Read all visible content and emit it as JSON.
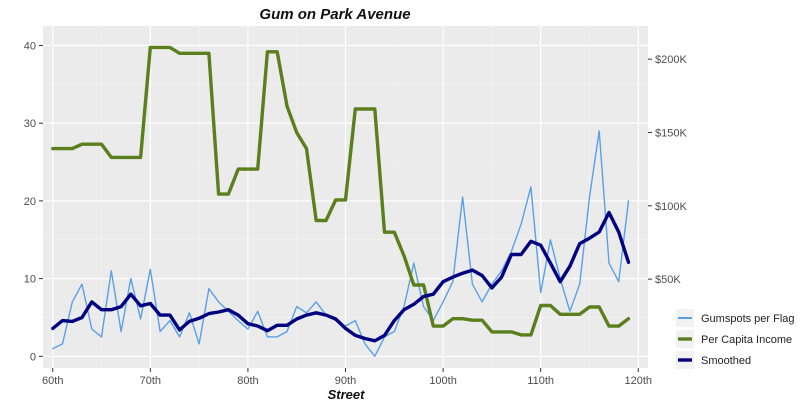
{
  "chart_data": {
    "type": "line",
    "title": "Gum on Park Avenue",
    "xlabel": "Street",
    "ylabel": "",
    "x_ticks": [
      "60th",
      "70th",
      "80th",
      "90th",
      "100th",
      "110th",
      "120th"
    ],
    "x_tick_values": [
      60,
      70,
      80,
      90,
      100,
      110,
      120
    ],
    "xlim": [
      59,
      121
    ],
    "y_left": {
      "ticks": [
        "0",
        "10",
        "20",
        "30",
        "40"
      ],
      "tick_values": [
        0,
        10,
        20,
        30,
        40
      ],
      "lim": [
        -1.5,
        42.5
      ]
    },
    "y_right": {
      "ticks": [
        "$50K",
        "$100K",
        "$150K",
        "$200K"
      ],
      "tick_values": [
        50000,
        100000,
        150000,
        200000
      ]
    },
    "grid": true,
    "legend_position": "bottom-right",
    "series": [
      {
        "name": "Gumspots per Flag",
        "color": "#5aa0e6",
        "axis": "left",
        "x": [
          60,
          61,
          62,
          63,
          64,
          65,
          66,
          67,
          68,
          69,
          70,
          71,
          72,
          73,
          74,
          75,
          76,
          77,
          78,
          79,
          80,
          81,
          82,
          83,
          84,
          85,
          86,
          87,
          88,
          89,
          90,
          91,
          92,
          93,
          94,
          95,
          96,
          97,
          98,
          99,
          100,
          101,
          102,
          103,
          104,
          105,
          106,
          107,
          108,
          109,
          110,
          111,
          112,
          113,
          114,
          115,
          116,
          117,
          118,
          119
        ],
        "values": [
          1.0,
          1.6,
          7.0,
          9.3,
          3.5,
          2.5,
          11.0,
          3.2,
          10.0,
          4.8,
          11.2,
          3.2,
          4.6,
          2.5,
          5.6,
          1.6,
          8.7,
          7.0,
          5.8,
          4.6,
          3.5,
          5.8,
          2.5,
          2.5,
          3.2,
          6.4,
          5.6,
          7.0,
          5.3,
          4.6,
          3.9,
          4.6,
          1.6,
          0.0,
          2.5,
          3.2,
          6.4,
          12.0,
          6.4,
          4.6,
          7.0,
          9.6,
          20.5,
          9.3,
          7.0,
          9.3,
          11.0,
          13.5,
          17.0,
          21.8,
          8.2,
          15.0,
          10.0,
          5.8,
          9.3,
          20.5,
          29.0,
          12.0,
          9.6,
          20.0
        ]
      },
      {
        "name": "Per Capita Income",
        "color": "#5a7f1c",
        "axis": "right",
        "x": [
          60,
          61,
          62,
          63,
          64,
          65,
          66,
          67,
          68,
          69,
          70,
          71,
          72,
          73,
          74,
          75,
          76,
          77,
          78,
          79,
          80,
          81,
          82,
          83,
          84,
          85,
          86,
          87,
          88,
          89,
          90,
          91,
          92,
          93,
          94,
          95,
          96,
          97,
          98,
          99,
          100,
          101,
          102,
          103,
          104,
          105,
          106,
          107,
          108,
          109,
          110,
          111,
          112,
          113,
          114,
          115,
          116,
          117,
          118,
          119
        ],
        "values": [
          139000,
          139000,
          139000,
          142000,
          142000,
          142000,
          133000,
          133000,
          133000,
          133000,
          208000,
          208000,
          208000,
          204000,
          204000,
          204000,
          204000,
          108000,
          108000,
          125000,
          125000,
          125000,
          205000,
          205000,
          168000,
          150000,
          139000,
          90000,
          90000,
          104000,
          104000,
          166000,
          166000,
          166000,
          82000,
          82000,
          66000,
          46000,
          46000,
          18000,
          18000,
          23000,
          23000,
          22000,
          22000,
          14000,
          14000,
          14000,
          12000,
          12000,
          32000,
          32000,
          26000,
          26000,
          26000,
          31000,
          31000,
          18000,
          18000,
          23000
        ]
      },
      {
        "name": "Smoothed",
        "color": "#000080",
        "axis": "left",
        "x": [
          60,
          61,
          62,
          63,
          64,
          65,
          66,
          67,
          68,
          69,
          70,
          71,
          72,
          73,
          74,
          75,
          76,
          77,
          78,
          79,
          80,
          81,
          82,
          83,
          84,
          85,
          86,
          87,
          88,
          89,
          90,
          91,
          92,
          93,
          94,
          95,
          96,
          97,
          98,
          99,
          100,
          101,
          102,
          103,
          104,
          105,
          106,
          107,
          108,
          109,
          110,
          111,
          112,
          113,
          114,
          115,
          116,
          117,
          118,
          119
        ],
        "values": [
          3.6,
          4.6,
          4.5,
          5.0,
          7.0,
          6.0,
          6.0,
          6.4,
          8.0,
          6.5,
          6.8,
          5.3,
          5.3,
          3.4,
          4.5,
          4.9,
          5.5,
          5.7,
          6.0,
          5.3,
          4.2,
          3.9,
          3.3,
          4.0,
          4.0,
          4.8,
          5.3,
          5.6,
          5.3,
          4.8,
          3.6,
          2.7,
          2.3,
          2.0,
          2.7,
          4.6,
          6.0,
          6.7,
          7.7,
          8.0,
          9.6,
          10.2,
          10.7,
          11.1,
          10.4,
          8.8,
          10.2,
          13.1,
          13.1,
          14.8,
          14.3,
          12.0,
          9.6,
          11.6,
          14.5,
          15.2,
          16.0,
          18.5,
          16.0,
          12.1
        ]
      }
    ]
  }
}
